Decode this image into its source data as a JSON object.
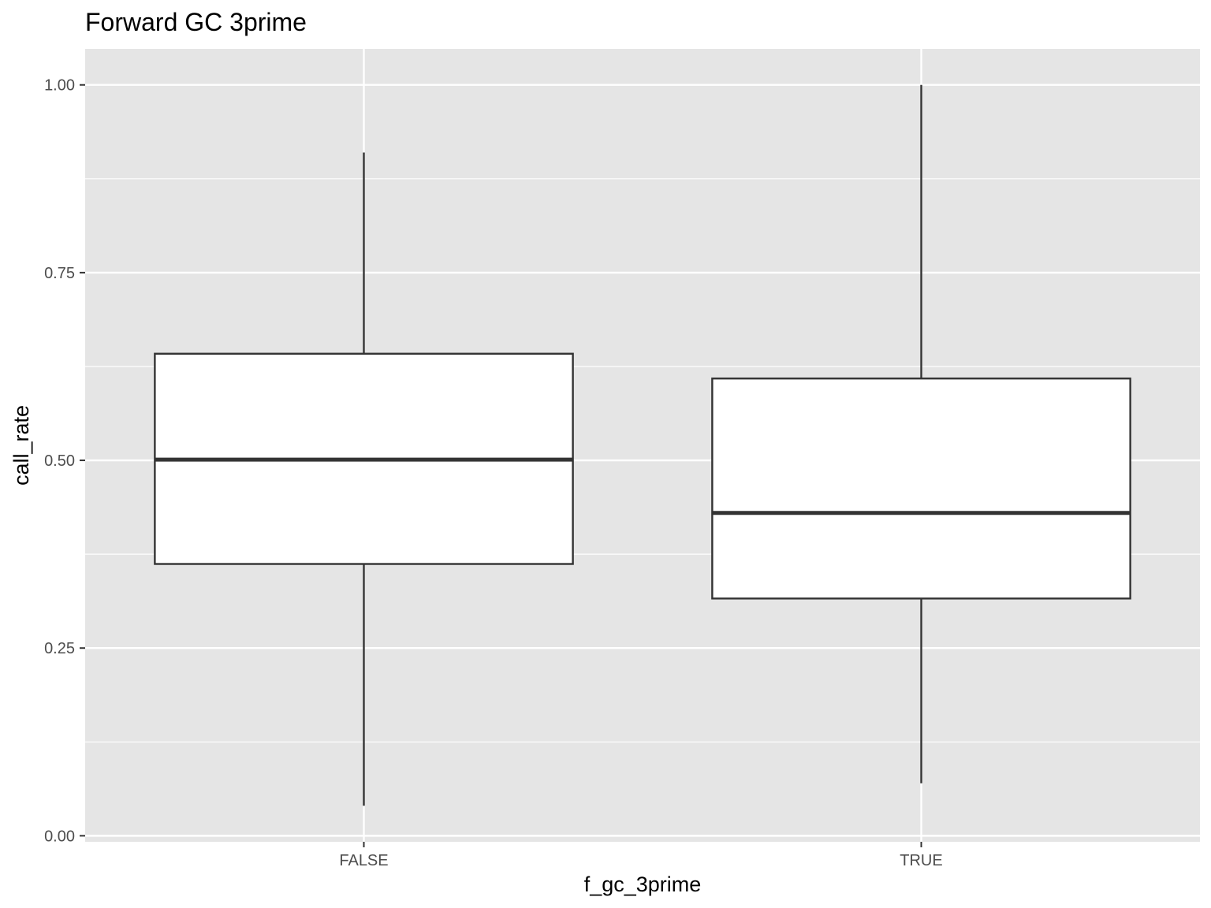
{
  "chart_data": {
    "type": "boxplot",
    "title": "Forward GC 3prime",
    "xlabel": "f_gc_3prime",
    "ylabel": "call_rate",
    "categories": [
      "FALSE",
      "TRUE"
    ],
    "yticks": [
      "0.00",
      "0.25",
      "0.50",
      "0.75",
      "1.00"
    ],
    "ytick_values": [
      0,
      0.25,
      0.5,
      0.75,
      1.0
    ],
    "ylim": [
      -0.008,
      1.048
    ],
    "boxes": [
      {
        "category": "FALSE",
        "whisker_low": 0.04,
        "q1": 0.362,
        "median": 0.501,
        "q3": 0.642,
        "whisker_high": 0.91
      },
      {
        "category": "TRUE",
        "whisker_low": 0.07,
        "q1": 0.316,
        "median": 0.43,
        "q3": 0.609,
        "whisker_high": 1.0
      }
    ],
    "grid": true,
    "colors": {
      "panel": "#e5e5e5",
      "grid": "#ffffff",
      "box_fill": "#ffffff",
      "box_line": "#333333"
    }
  }
}
